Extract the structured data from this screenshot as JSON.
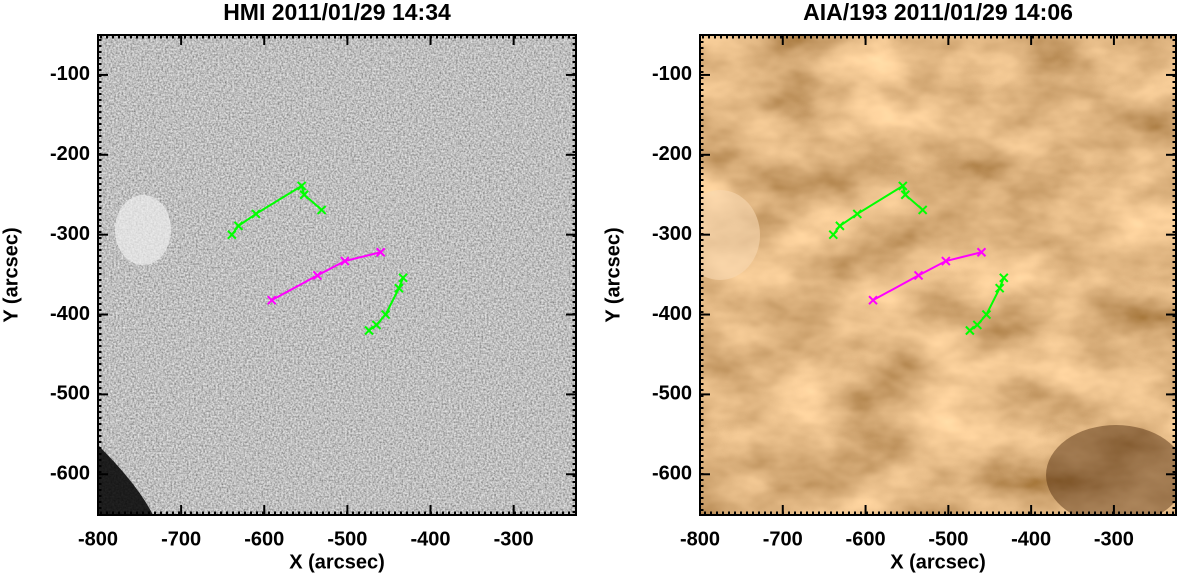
{
  "chart_data": [
    {
      "type": "image",
      "title": "HMI 2011/01/29 14:34",
      "xlabel": "X (arcsec)",
      "ylabel": "Y (arcsec)",
      "colormap": "gray",
      "xlim": [
        -800,
        -225
      ],
      "ylim": [
        -651,
        -50
      ],
      "xticks": [
        -800,
        -700,
        -600,
        -500,
        -400,
        -300
      ],
      "yticks": [
        -100,
        -200,
        -300,
        -400,
        -500,
        -600
      ],
      "series": [
        {
          "color": "#00ff00",
          "x": [
            -639,
            -631,
            -610,
            -555,
            -552,
            -531
          ],
          "values": [
            -300,
            -289,
            -274,
            -239,
            -250,
            -269
          ]
        },
        {
          "color": "#ff00ff",
          "x": [
            -591,
            -536,
            -503,
            -460
          ],
          "values": [
            -382,
            -351,
            -333,
            -322
          ]
        },
        {
          "color": "#00ff00",
          "x": [
            -474,
            -465,
            -454,
            -438,
            -433
          ],
          "values": [
            -420,
            -413,
            -400,
            -367,
            -354
          ]
        }
      ]
    },
    {
      "type": "image",
      "title": "AIA/193 2011/01/29 14:06",
      "xlabel": "X (arcsec)",
      "ylabel": "Y (arcsec)",
      "colormap": "brown",
      "xlim": [
        -800,
        -225
      ],
      "ylim": [
        -651,
        -50
      ],
      "xticks": [
        -800,
        -700,
        -600,
        -500,
        -400,
        -300
      ],
      "yticks": [
        -100,
        -200,
        -300,
        -400,
        -500,
        -600
      ],
      "series": [
        {
          "color": "#00ff00",
          "x": [
            -639,
            -631,
            -610,
            -555,
            -552,
            -531
          ],
          "values": [
            -300,
            -289,
            -274,
            -239,
            -250,
            -269
          ]
        },
        {
          "color": "#ff00ff",
          "x": [
            -591,
            -536,
            -503,
            -460
          ],
          "values": [
            -382,
            -351,
            -333,
            -322
          ]
        },
        {
          "color": "#00ff00",
          "x": [
            -474,
            -465,
            -454,
            -438,
            -433
          ],
          "values": [
            -420,
            -413,
            -400,
            -367,
            -354
          ]
        }
      ]
    }
  ]
}
